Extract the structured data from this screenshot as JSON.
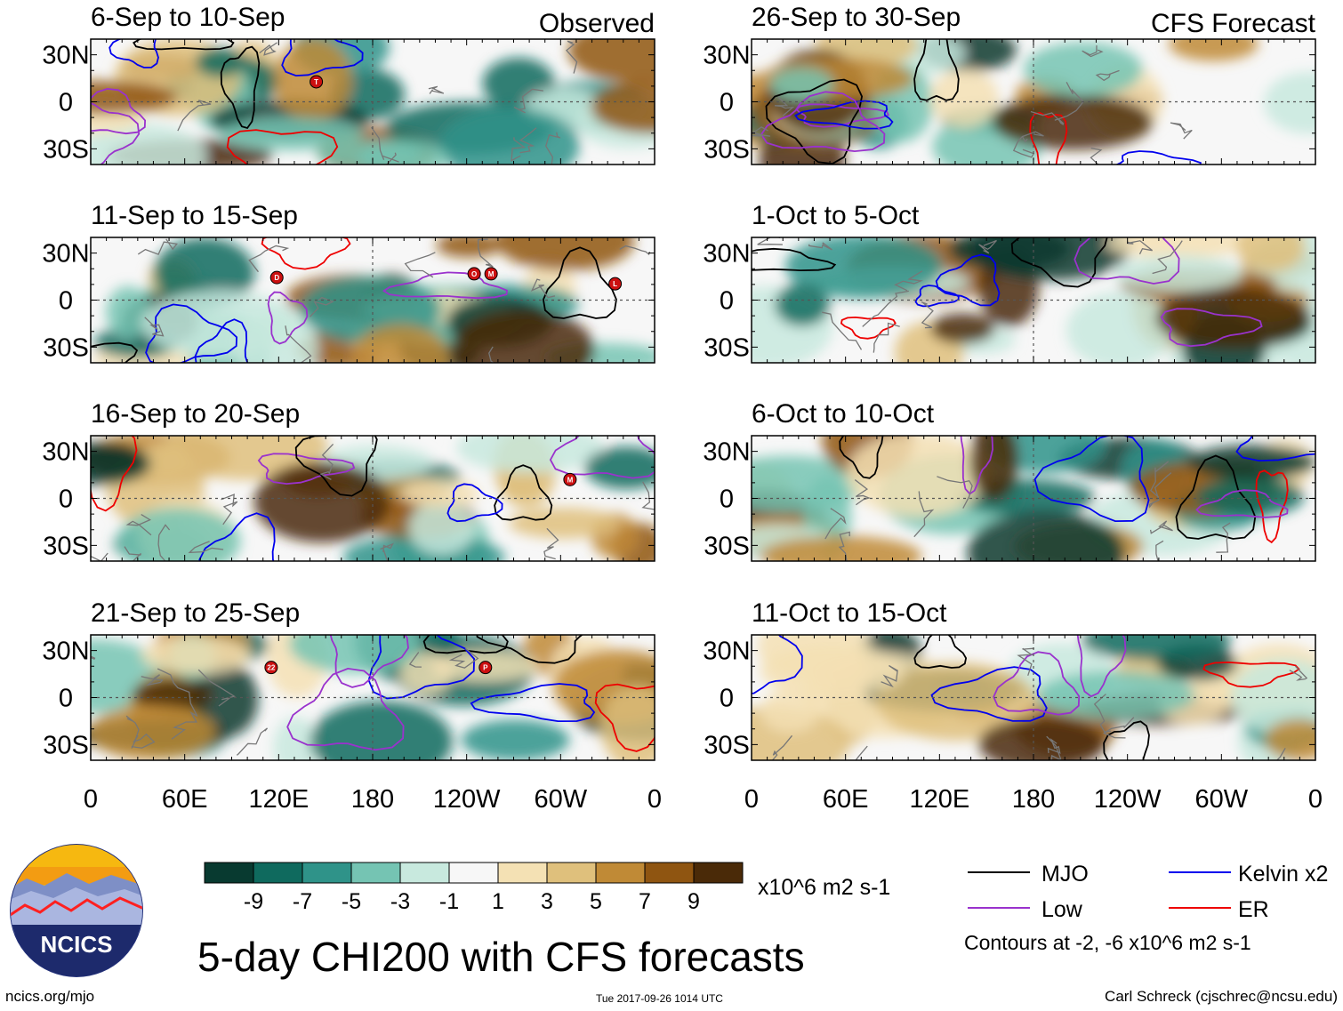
{
  "chart_data": {
    "type": "heatmap",
    "title": "5-day CHI200 with CFS forecasts",
    "units": "x10^6 m2 s-1",
    "observed_label": "Observed",
    "forecast_label": "CFS Forecast",
    "panels": [
      {
        "period": "6-Sep to 10-Sep",
        "group": "observed"
      },
      {
        "period": "11-Sep to 15-Sep",
        "group": "observed"
      },
      {
        "period": "16-Sep to 20-Sep",
        "group": "observed"
      },
      {
        "period": "21-Sep to 25-Sep",
        "group": "observed"
      },
      {
        "period": "26-Sep to 30-Sep",
        "group": "forecast"
      },
      {
        "period": "1-Oct to 5-Oct",
        "group": "forecast"
      },
      {
        "period": "6-Oct to 10-Oct",
        "group": "forecast"
      },
      {
        "period": "11-Oct to 15-Oct",
        "group": "forecast"
      }
    ],
    "x_ticks": [
      "0",
      "60E",
      "120E",
      "180",
      "120W",
      "60W",
      "0"
    ],
    "y_ticks": [
      "30N",
      "0",
      "30S"
    ],
    "xlim": [
      0,
      360
    ],
    "ylim": [
      -40,
      40
    ],
    "colorbar": {
      "ticks": [
        "-9",
        "-7",
        "-5",
        "-3",
        "-1",
        "1",
        "3",
        "5",
        "7",
        "9"
      ],
      "colors": [
        "#083a30",
        "#0f6a5e",
        "#2f9389",
        "#75c4b3",
        "#c8e9de",
        "#f7f7f7",
        "#f4e1b4",
        "#dfc07c",
        "#c08a36",
        "#8f5511",
        "#4a2a08"
      ]
    },
    "legend": {
      "items": [
        {
          "label": "MJO",
          "color": "#000000"
        },
        {
          "label": "Kelvin x2",
          "color": "#0000ee"
        },
        {
          "label": "Low",
          "color": "#9a32cd"
        },
        {
          "label": "ER",
          "color": "#ee0000"
        }
      ],
      "note": "Contours at -2, -6 x10^6 m2 s-1"
    },
    "annotations": {
      "storm_labels": [
        "T",
        "D",
        "O",
        "M",
        "L",
        "M",
        "22",
        "P"
      ]
    }
  },
  "logo": {
    "text": "NCICS"
  },
  "footer": {
    "url": "ncics.org/mjo",
    "timestamp": "Tue 2017-09-26 1014 UTC",
    "author": "Carl Schreck (cjschrec@ncsu.edu)"
  }
}
